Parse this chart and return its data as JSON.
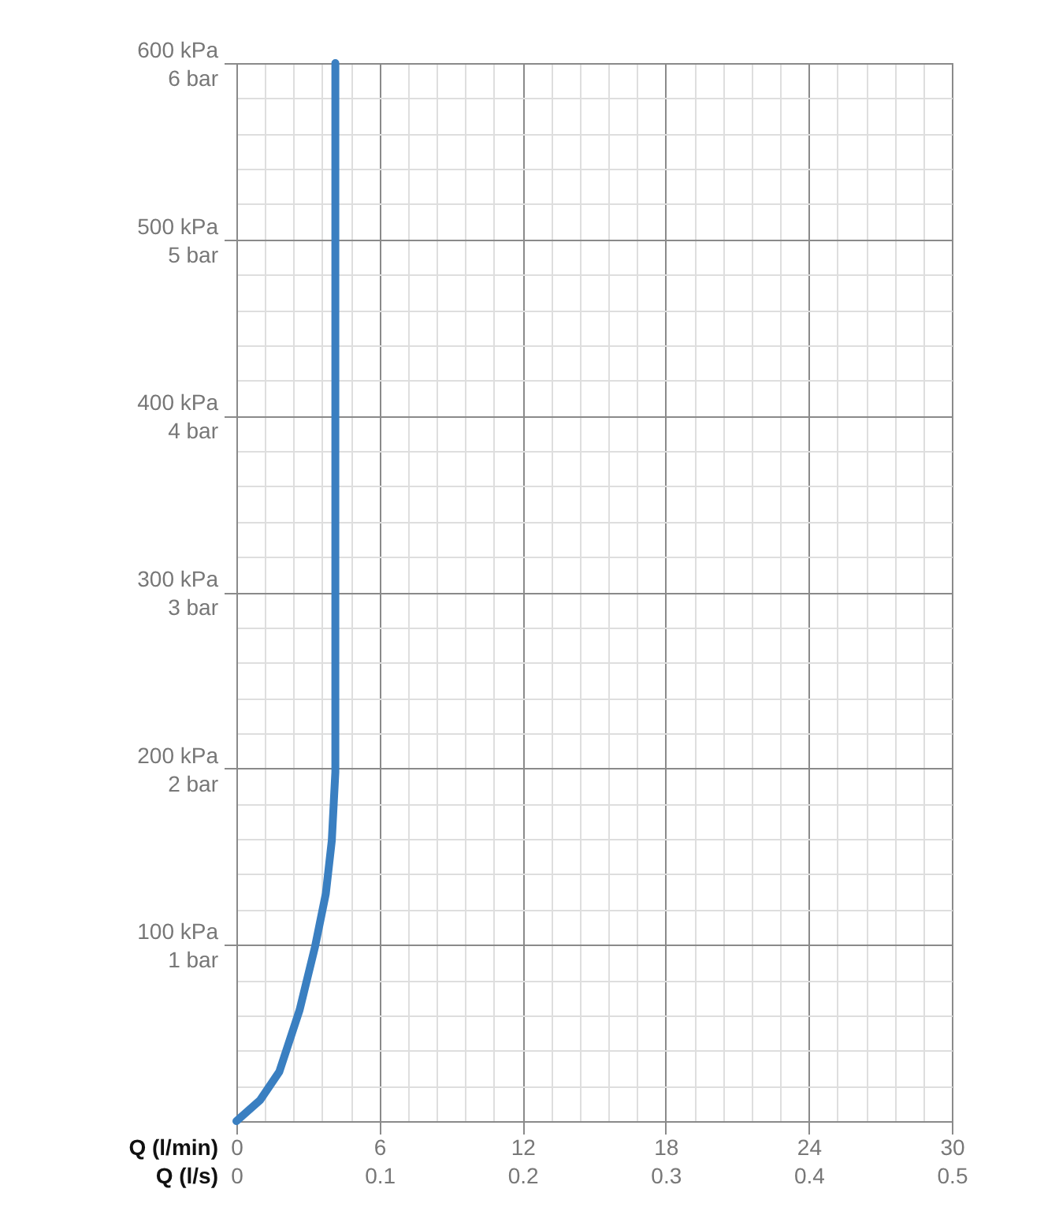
{
  "chart_data": {
    "type": "line",
    "xlabel": "Q (l/min)",
    "x2label": "Q (l/s)",
    "grid": true,
    "legend": false,
    "marker": "none",
    "line_style": "solid",
    "xlim": [
      0,
      30
    ],
    "ylim": [
      0,
      600
    ],
    "x2lim": [
      0,
      0.5
    ],
    "y2lim": [
      0,
      6
    ],
    "xticks": [
      0,
      {
        "value": 1.2,
        "label": null
      },
      {
        "value": 2.4,
        "label": null
      },
      {
        "value": 3.6,
        "label": null
      },
      {
        "value": 4.8,
        "label": null
      },
      6,
      {
        "value": 7.2,
        "label": null
      },
      {
        "value": 8.4,
        "label": null
      },
      {
        "value": 9.6,
        "label": null
      },
      {
        "value": 10.8,
        "label": null
      },
      12,
      {
        "value": 13.2,
        "label": null
      },
      {
        "value": 14.4,
        "label": null
      },
      {
        "value": 15.6,
        "label": null
      },
      {
        "value": 16.8,
        "label": null
      },
      18,
      {
        "value": 19.2,
        "label": null
      },
      {
        "value": 20.4,
        "label": null
      },
      {
        "value": 21.6,
        "label": null
      },
      {
        "value": 22.8,
        "label": null
      },
      24,
      {
        "value": 25.2,
        "label": null
      },
      {
        "value": 26.4,
        "label": null
      },
      {
        "value": 27.6,
        "label": null
      },
      {
        "value": 28.8,
        "label": null
      },
      30
    ],
    "x2ticks": [
      0,
      0.1,
      0.2,
      0.3,
      0.4,
      0.5
    ],
    "yticks": [
      {
        "value": 0,
        "label": null
      },
      {
        "value": 20,
        "label": null
      },
      {
        "value": 40,
        "label": null
      },
      {
        "value": 60,
        "label": null
      },
      {
        "value": 80,
        "label": null
      },
      {
        "value": 100,
        "label": "100 kPa"
      },
      {
        "value": 120,
        "label": null
      },
      {
        "value": 140,
        "label": null
      },
      {
        "value": 160,
        "label": null
      },
      {
        "value": 180,
        "label": null
      },
      {
        "value": 200,
        "label": "200 kPa"
      },
      {
        "value": 220,
        "label": null
      },
      {
        "value": 240,
        "label": null
      },
      {
        "value": 260,
        "label": null
      },
      {
        "value": 280,
        "label": null
      },
      {
        "value": 300,
        "label": "300 kPa"
      },
      {
        "value": 320,
        "label": null
      },
      {
        "value": 340,
        "label": null
      },
      {
        "value": 360,
        "label": null
      },
      {
        "value": 380,
        "label": null
      },
      {
        "value": 400,
        "label": "400 kPa"
      },
      {
        "value": 420,
        "label": null
      },
      {
        "value": 440,
        "label": null
      },
      {
        "value": 460,
        "label": null
      },
      {
        "value": 480,
        "label": null
      },
      {
        "value": 500,
        "label": "500 kPa"
      },
      {
        "value": 520,
        "label": null
      },
      {
        "value": 540,
        "label": null
      },
      {
        "value": 560,
        "label": null
      },
      {
        "value": 580,
        "label": null
      },
      {
        "value": 600,
        "label": "600 kPa"
      }
    ],
    "y2ticks": [
      {
        "value": 1,
        "label": "1 bar"
      },
      {
        "value": 2,
        "label": "2 bar"
      },
      {
        "value": 3,
        "label": "3 bar"
      },
      {
        "value": 4,
        "label": "4 bar"
      },
      {
        "value": 5,
        "label": "5 bar"
      },
      {
        "value": 6,
        "label": "6 bar"
      }
    ],
    "series": [
      {
        "color": "#3a7fc1",
        "x": [
          0,
          1.0,
          1.8,
          2.65,
          3.3,
          3.75,
          4.0,
          4.15,
          4.15,
          4.15
        ],
        "values": [
          0,
          12,
          28,
          63,
          99,
          129,
          159,
          198,
          242,
          600
        ]
      }
    ]
  }
}
